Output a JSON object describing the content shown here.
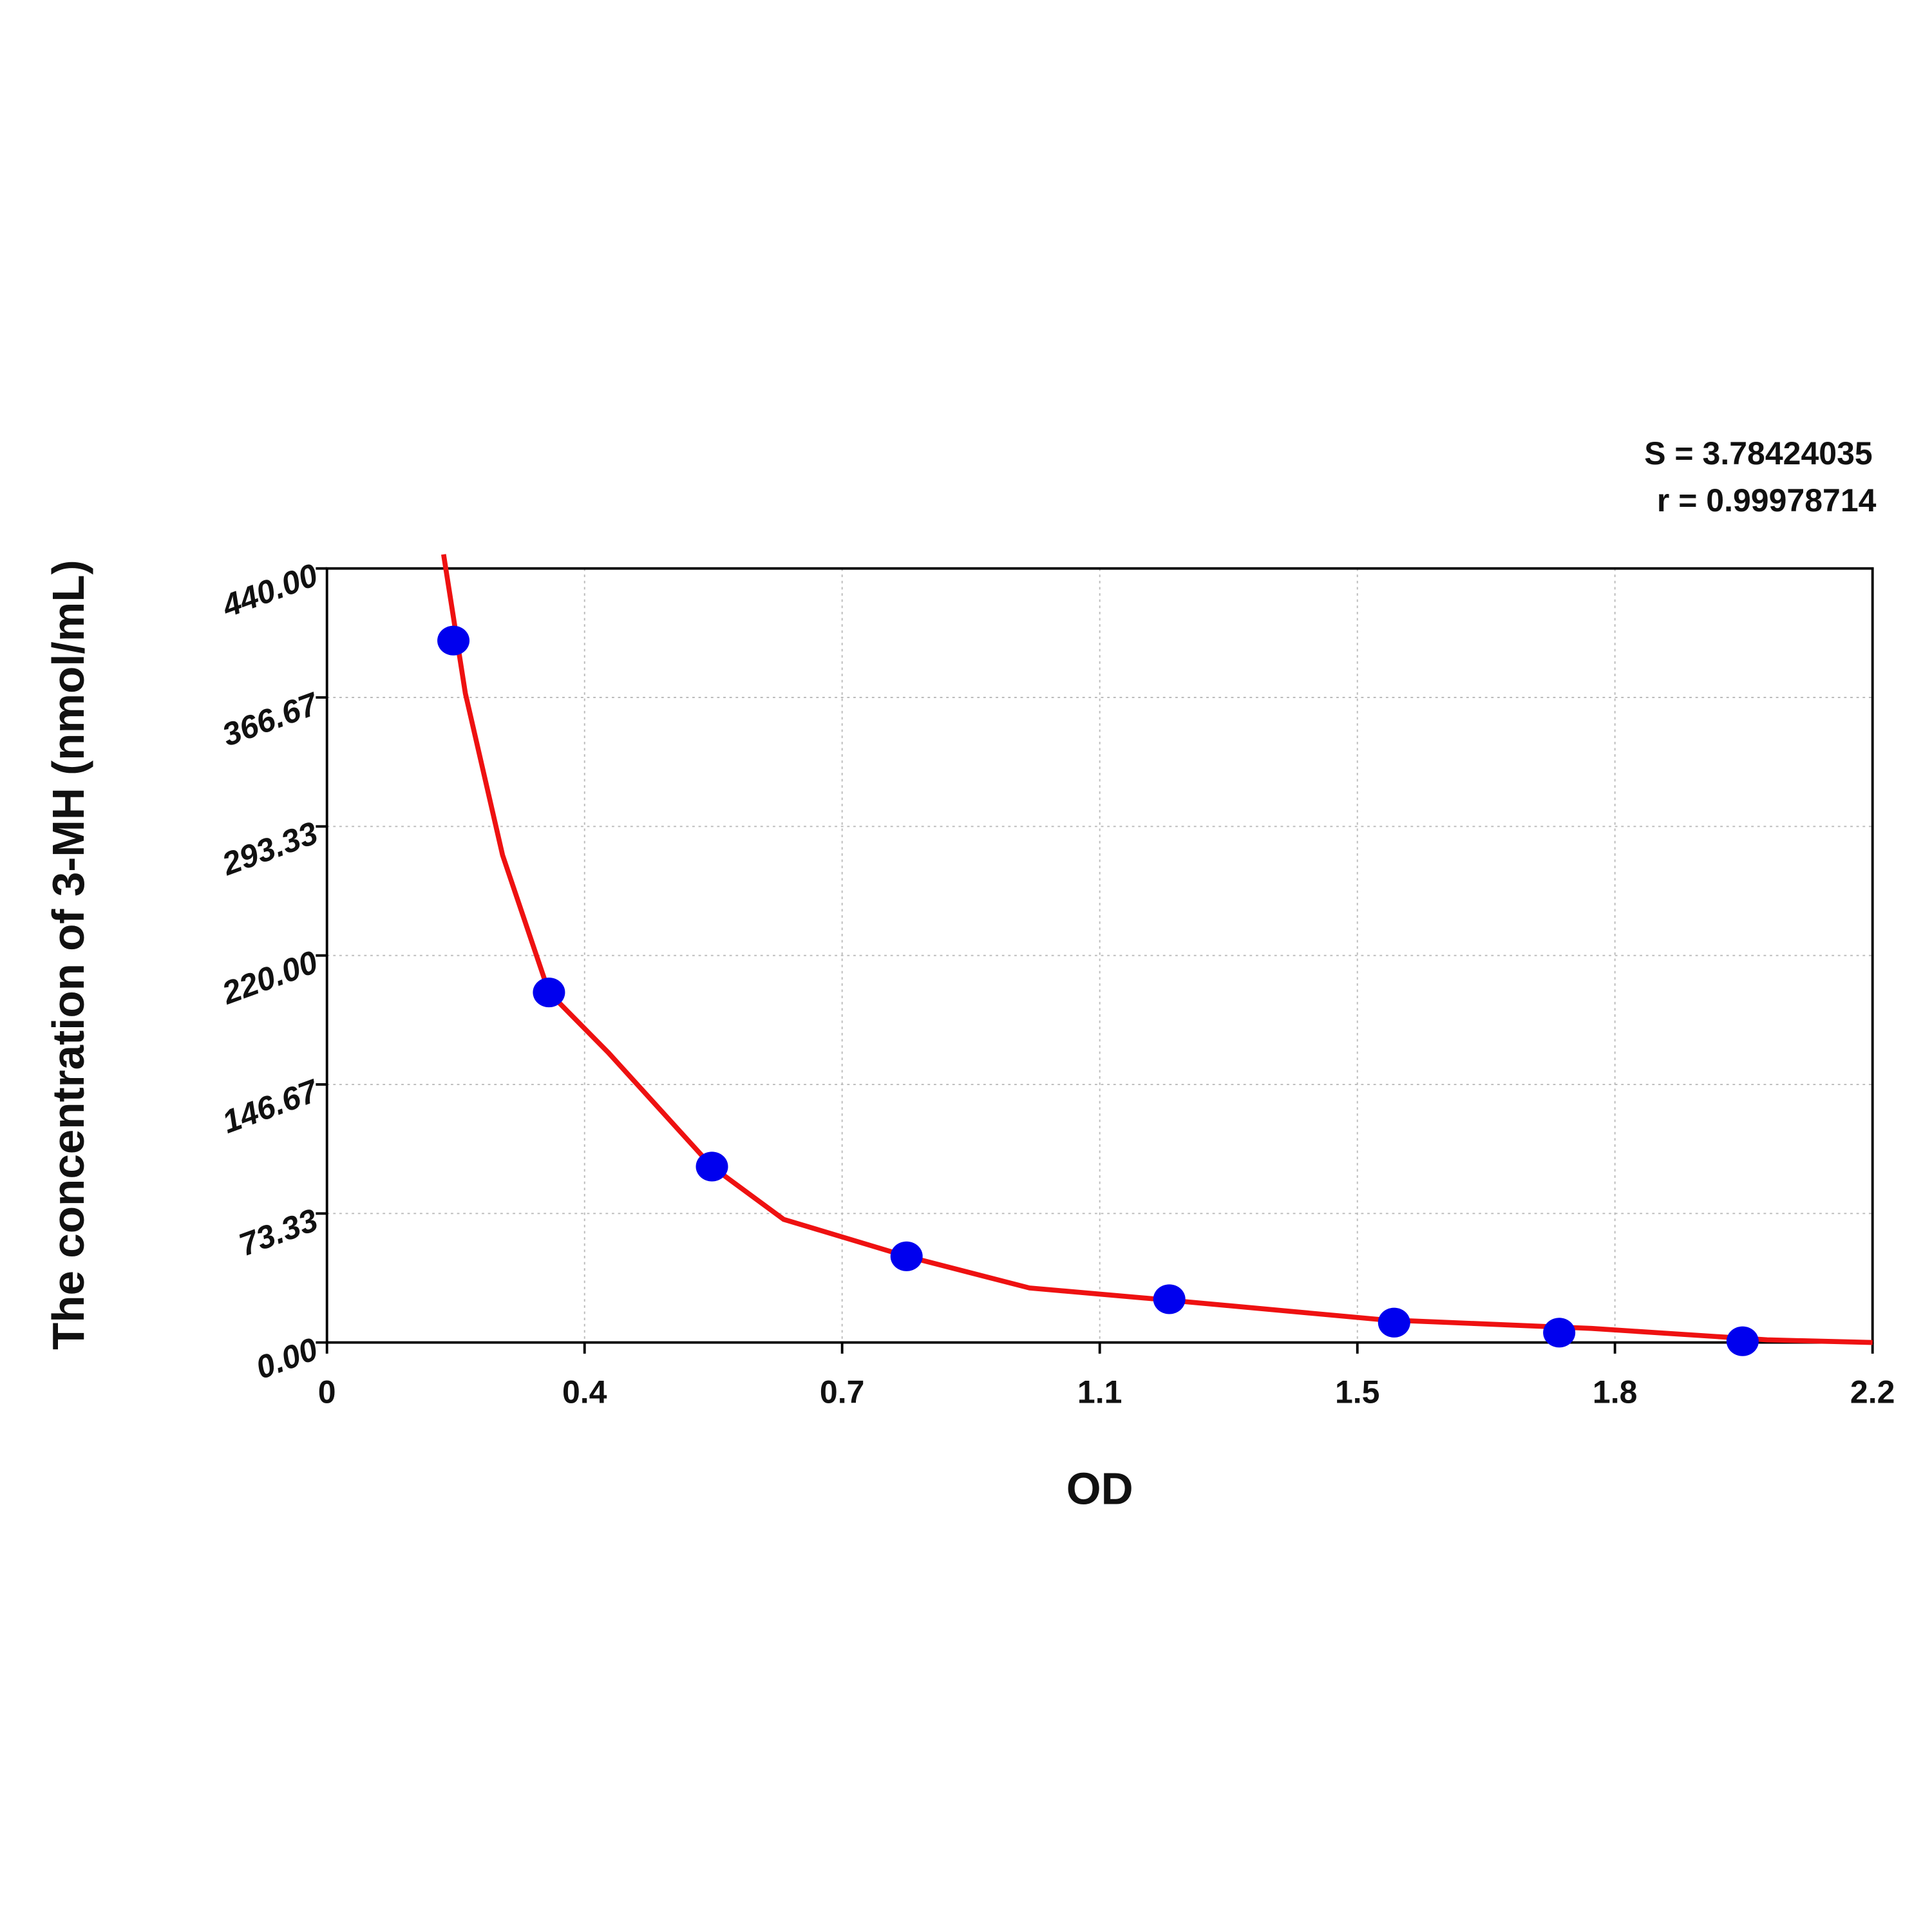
{
  "chart_data": {
    "type": "scatter",
    "annotations": [
      "S = 3.78424035",
      "r = 0.99978714"
    ],
    "xlabel": "OD",
    "ylabel": "The concentration of 3-MH (nmol/mL)",
    "x": [
      0.18,
      0.316,
      0.548,
      0.825,
      1.199,
      1.519,
      1.754,
      2.015
    ],
    "values": [
      399,
      199,
      100,
      49,
      24.6,
      11.3,
      5.6,
      0.7
    ],
    "color": "#0000ee",
    "fit_curve": {
      "color": "#ee1111",
      "x": [
        0.166,
        0.197,
        0.25,
        0.316,
        0.4,
        0.548,
        0.65,
        0.825,
        1.0,
        1.2,
        1.5,
        1.8,
        2.05,
        2.2
      ],
      "values": [
        448,
        369,
        277,
        199,
        165,
        100,
        70,
        49,
        31,
        24,
        13,
        8,
        1.5,
        0
      ]
    },
    "xlim": [
      0,
      2.2
    ],
    "ylim": [
      0,
      440
    ],
    "xticks": [
      0,
      {
        "value": 0.3667,
        "label": "0.4"
      },
      {
        "value": 0.7333,
        "label": "0.7"
      },
      1.1,
      {
        "value": 1.4667,
        "label": "1.5"
      },
      {
        "value": 1.8333,
        "label": "1.8"
      },
      2.2
    ],
    "yticks": [
      {
        "value": 0,
        "label": "0.00"
      },
      {
        "value": 73.33,
        "label": "73.33"
      },
      {
        "value": 146.67,
        "label": "146.67"
      },
      {
        "value": 220,
        "label": "220.00"
      },
      {
        "value": 293.33,
        "label": "293.33"
      },
      {
        "value": 366.67,
        "label": "366.67"
      },
      {
        "value": 440,
        "label": "440.00"
      }
    ],
    "grid": true
  }
}
